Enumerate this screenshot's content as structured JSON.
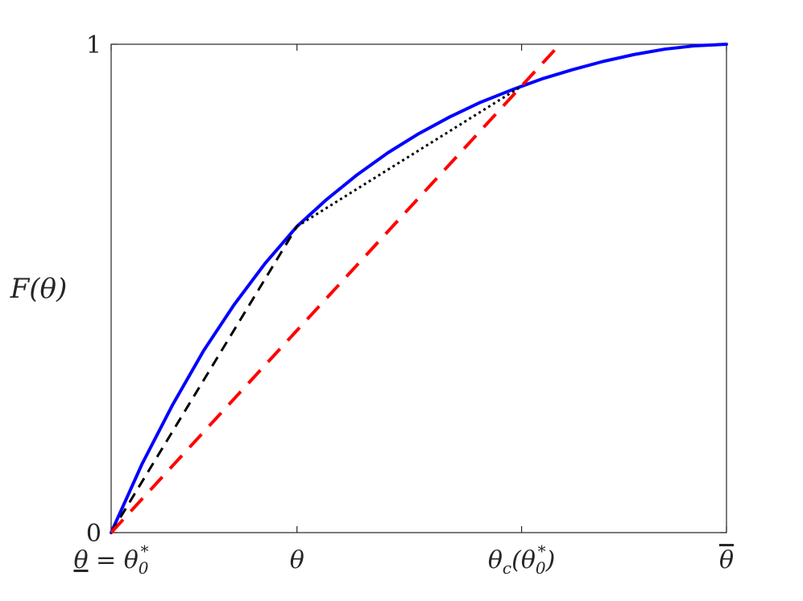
{
  "chart_data": {
    "type": "line",
    "title": "",
    "xlabel": "",
    "ylabel": "F(θ)",
    "xlim": [
      0,
      1
    ],
    "ylim": [
      0,
      1
    ],
    "grid": false,
    "legend": "none",
    "x_ticks": [
      {
        "value": 0,
        "label_parts": [
          {
            "text": "θ",
            "underline": true
          },
          {
            "text": " = θ"
          },
          {
            "text": "0",
            "sub": true
          },
          {
            "text": "*",
            "sup": true
          }
        ]
      },
      {
        "value": 0.302,
        "label_parts": [
          {
            "text": "θ"
          }
        ]
      },
      {
        "value": 0.667,
        "label_parts": [
          {
            "text": "θ"
          },
          {
            "text": "c",
            "sub": true
          },
          {
            "text": "(θ"
          },
          {
            "text": "0",
            "sub": true
          },
          {
            "text": "*",
            "sup": true
          },
          {
            "text": ")"
          }
        ]
      },
      {
        "value": 1,
        "label_parts": [
          {
            "text": "θ",
            "overline": true
          }
        ]
      }
    ],
    "y_ticks": [
      {
        "value": 0,
        "label": "0"
      },
      {
        "value": 1,
        "label": "1"
      }
    ],
    "series": [
      {
        "role": "F-curve",
        "color": "#0000ff",
        "style": "solid",
        "x": [
          0,
          0.05,
          0.1,
          0.15,
          0.2,
          0.25,
          0.302,
          0.35,
          0.4,
          0.45,
          0.5,
          0.55,
          0.6,
          0.65,
          0.667,
          0.7,
          0.75,
          0.8,
          0.85,
          0.9,
          0.95,
          1.0
        ],
        "y": [
          0,
          0.14,
          0.262,
          0.372,
          0.467,
          0.551,
          0.627,
          0.682,
          0.733,
          0.778,
          0.817,
          0.851,
          0.881,
          0.906,
          0.914,
          0.929,
          0.948,
          0.965,
          0.979,
          0.99,
          0.997,
          1.0
        ]
      },
      {
        "role": "chord-to-theta",
        "color": "#000000",
        "style": "dashed",
        "x": [
          0,
          0.302
        ],
        "y": [
          0,
          0.627
        ]
      },
      {
        "role": "chord-theta-to-thetac",
        "color": "#000000",
        "style": "dotted",
        "x": [
          0.302,
          0.667
        ],
        "y": [
          0.627,
          0.914
        ]
      },
      {
        "role": "line-through-thetac",
        "color": "#ff0000",
        "style": "dashed",
        "x": [
          0,
          0.725
        ],
        "y": [
          0,
          0.994
        ]
      }
    ]
  }
}
